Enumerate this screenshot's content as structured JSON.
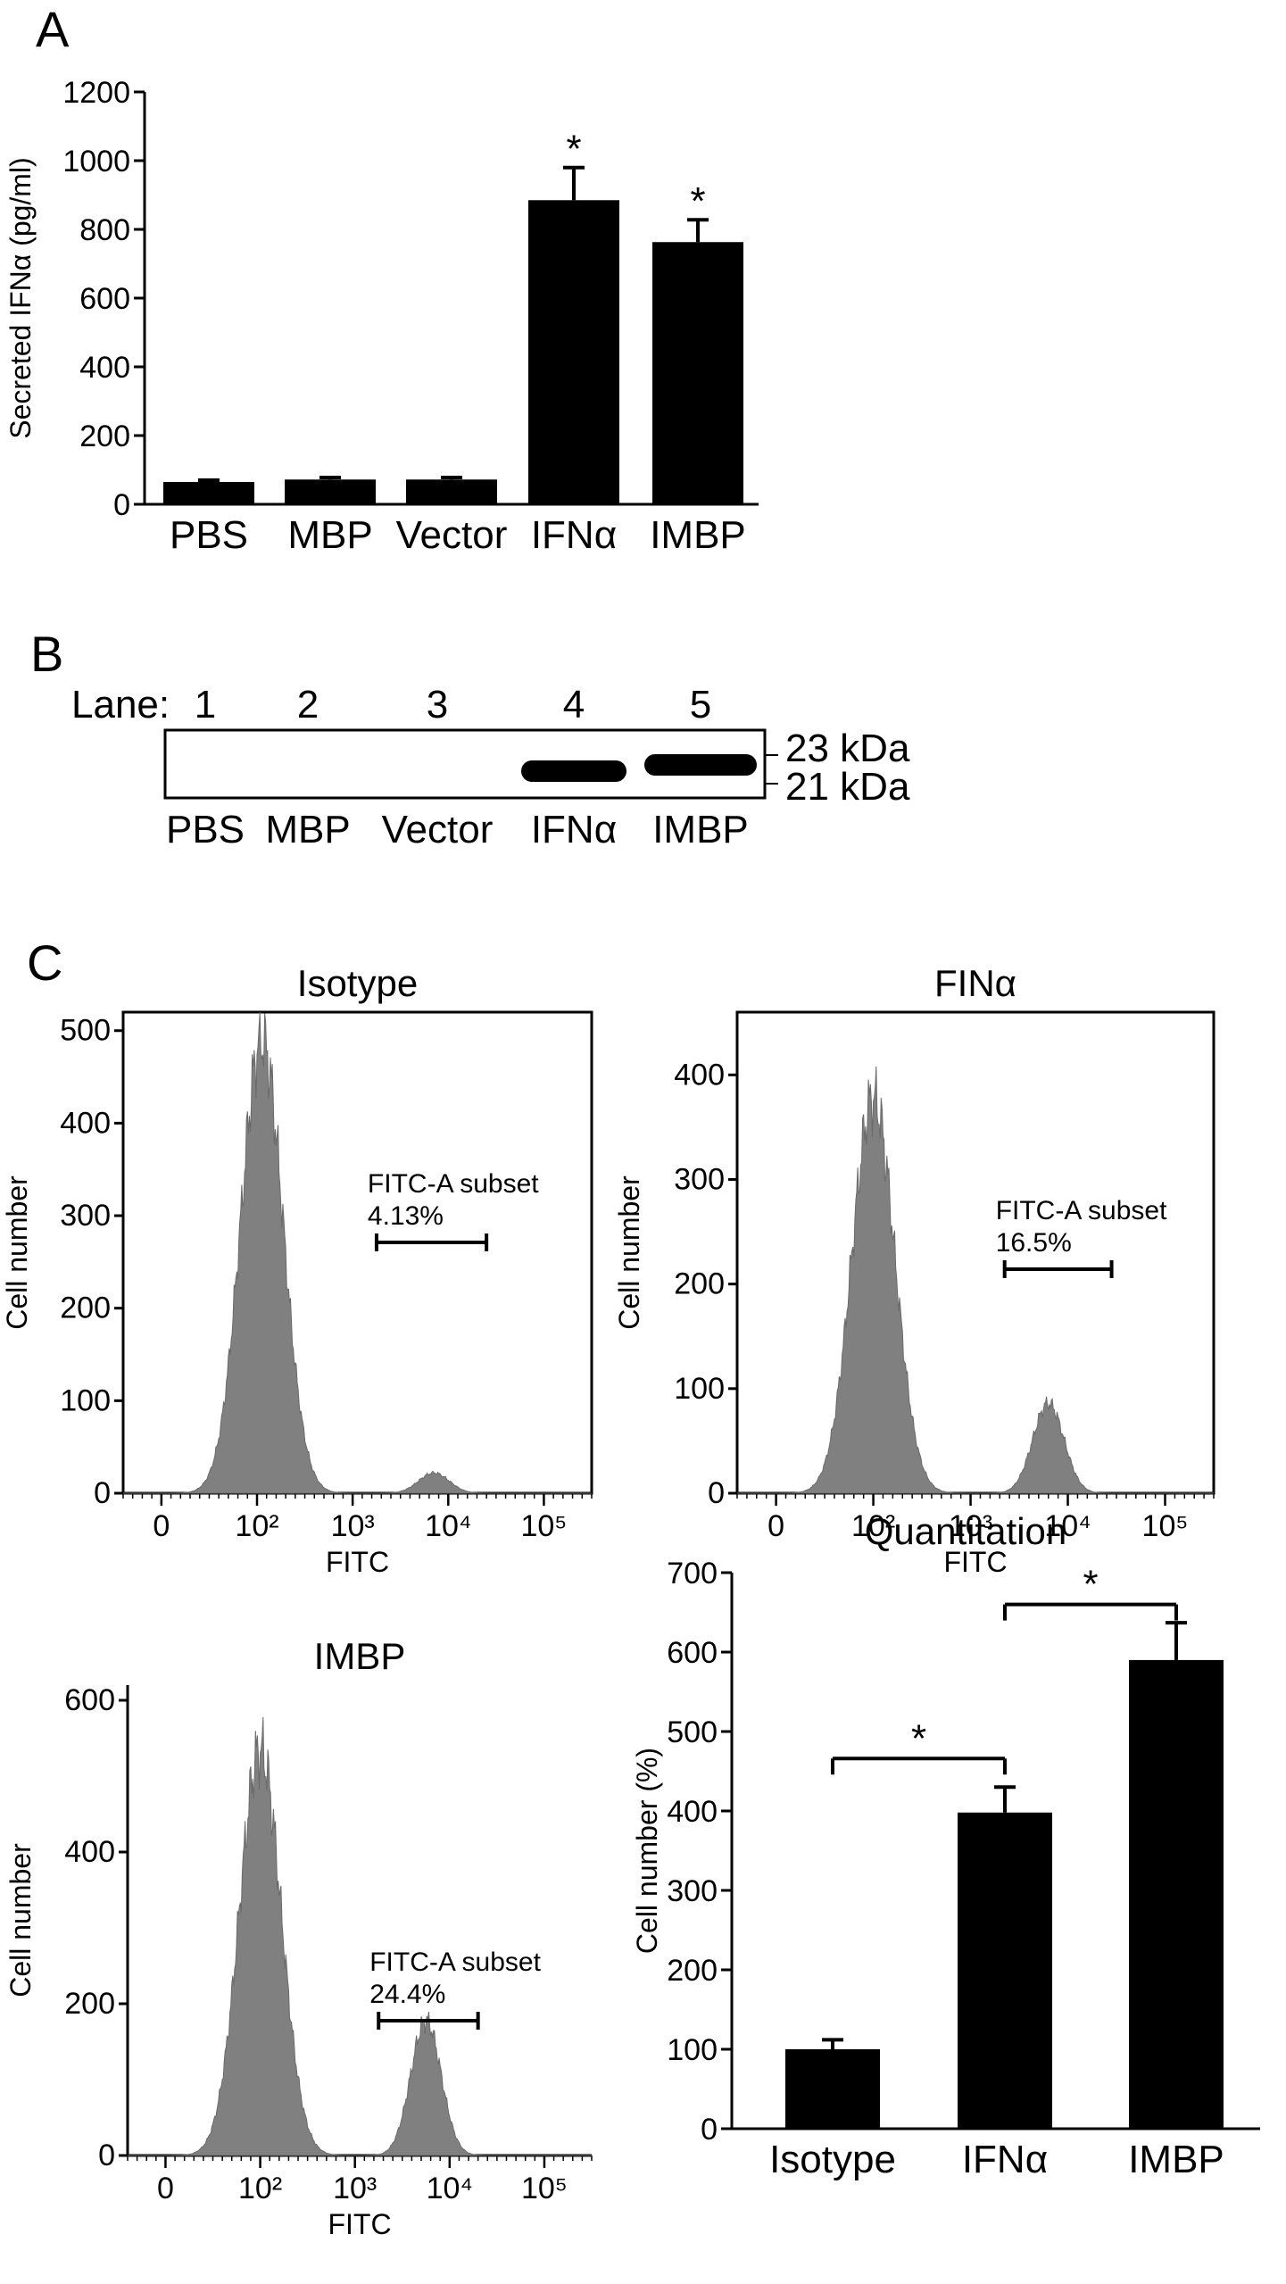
{
  "panels": {
    "a": {
      "letter": "A"
    },
    "b": {
      "letter": "B"
    },
    "c": {
      "letter": "C"
    }
  },
  "western_blot": {
    "lane_label": "Lane:",
    "lanes": [
      "1",
      "2",
      "3",
      "4",
      "5"
    ],
    "samples": [
      "PBS",
      "MBP",
      "Vector",
      "IFNα",
      "IMBP"
    ],
    "band_present": [
      false,
      false,
      false,
      true,
      true
    ],
    "markers": [
      "23 kDa",
      "21 kDa"
    ]
  },
  "chart_data": [
    {
      "id": "secreted_ifn",
      "type": "bar",
      "categories": [
        "PBS",
        "MBP",
        "Vector",
        "IFNα",
        "IMBP"
      ],
      "values": [
        65,
        72,
        72,
        885,
        763
      ],
      "errors": [
        5,
        6,
        6,
        95,
        65
      ],
      "significance": [
        "",
        "",
        "",
        "*",
        "*"
      ],
      "title": "",
      "xlabel": "",
      "ylabel": "Secreted IFNα (pg/ml)",
      "ylim": [
        0,
        1200
      ],
      "yticks": [
        0,
        200,
        400,
        600,
        800,
        1000,
        1200
      ],
      "bar_color": "#000000"
    },
    {
      "id": "isotype",
      "type": "area",
      "title": "Isotype",
      "xlabel": "FITC",
      "ylabel": "Cell number",
      "xscale": "biexponential",
      "xticks": [
        "0",
        "10²",
        "10³",
        "10⁴",
        "10⁵"
      ],
      "ylim": [
        0,
        520
      ],
      "yticks": [
        0,
        100,
        200,
        300,
        400,
        500
      ],
      "peaks": [
        {
          "center_log10": 2.05,
          "height": 490
        },
        {
          "center_log10": 3.85,
          "height": 22
        }
      ],
      "gate": {
        "label": "FITC-A subset",
        "percent": "4.13%",
        "range_log10": [
          3.25,
          4.4
        ]
      },
      "fill_color": "#808080"
    },
    {
      "id": "finalpha",
      "type": "area",
      "title": "FINα",
      "xlabel": "FITC",
      "ylabel": "Cell number",
      "xscale": "biexponential",
      "xticks": [
        "0",
        "10²",
        "10³",
        "10⁴",
        "10⁵"
      ],
      "ylim": [
        0,
        460
      ],
      "yticks": [
        0,
        100,
        200,
        300,
        400
      ],
      "peaks": [
        {
          "center_log10": 2.0,
          "height": 378
        },
        {
          "center_log10": 3.8,
          "height": 86
        }
      ],
      "gate": {
        "label": "FITC-A subset",
        "percent": "16.5%",
        "range_log10": [
          3.35,
          4.45
        ]
      },
      "fill_color": "#808080"
    },
    {
      "id": "imbp",
      "type": "area",
      "title": "IMBP",
      "xlabel": "FITC",
      "ylabel": "Cell number",
      "xscale": "biexponential",
      "xticks": [
        "0",
        "10²",
        "10³",
        "10⁴",
        "10⁵"
      ],
      "ylim": [
        0,
        620
      ],
      "yticks": [
        0,
        200,
        400,
        600
      ],
      "peaks": [
        {
          "center_log10": 2.0,
          "height": 535
        },
        {
          "center_log10": 3.75,
          "height": 178
        }
      ],
      "gate": {
        "label": "FITC-A subset",
        "percent": "24.4%",
        "range_log10": [
          3.25,
          4.3
        ]
      },
      "fill_color": "#808080"
    },
    {
      "id": "quantitation",
      "type": "bar",
      "title": "Quantitation",
      "categories": [
        "Isotype",
        "IFNα",
        "IMBP"
      ],
      "values": [
        100,
        398,
        590
      ],
      "errors": [
        12,
        32,
        47
      ],
      "xlabel": "",
      "ylabel": "Cell number (%)",
      "ylim": [
        0,
        700
      ],
      "yticks": [
        0,
        100,
        200,
        300,
        400,
        500,
        600,
        700
      ],
      "significance_brackets": [
        {
          "from": 0,
          "to": 1,
          "label": "*"
        },
        {
          "from": 1,
          "to": 2,
          "label": "*"
        }
      ],
      "bar_color": "#000000"
    }
  ]
}
